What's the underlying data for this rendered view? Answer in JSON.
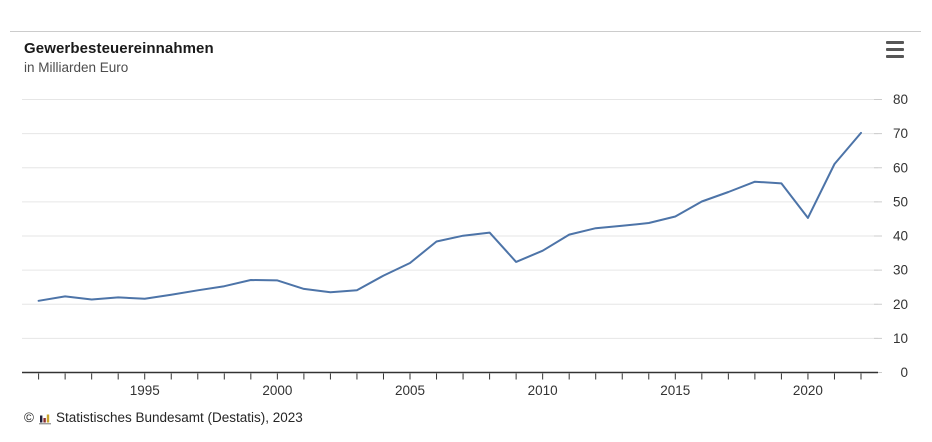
{
  "header": {
    "title": "Gewerbesteuereinnahmen",
    "subtitle": "in Milliarden Euro"
  },
  "menu": {
    "icon": "hamburger-menu-icon"
  },
  "chart_data": {
    "type": "line",
    "title": "Gewerbesteuereinnahmen",
    "subtitle": "in Milliarden Euro",
    "xlabel": "",
    "ylabel": "in Milliarden Euro",
    "x": [
      1991,
      1992,
      1993,
      1994,
      1995,
      1996,
      1997,
      1998,
      1999,
      2000,
      2001,
      2002,
      2003,
      2004,
      2005,
      2006,
      2007,
      2008,
      2009,
      2010,
      2011,
      2012,
      2013,
      2014,
      2015,
      2016,
      2017,
      2018,
      2019,
      2020,
      2021,
      2022
    ],
    "series": [
      {
        "name": "Gewerbesteuereinnahmen",
        "values": [
          21.0,
          22.3,
          21.4,
          22.0,
          21.6,
          22.8,
          24.1,
          25.3,
          27.1,
          27.0,
          24.5,
          23.5,
          24.1,
          28.4,
          32.1,
          38.4,
          40.1,
          41.0,
          32.4,
          35.7,
          40.4,
          42.3,
          43.0,
          43.8,
          45.7,
          50.1,
          52.9,
          55.9,
          55.4,
          45.3,
          61.1,
          70.2
        ]
      }
    ],
    "ylim": [
      0,
      80
    ],
    "yticks": [
      0,
      10,
      20,
      30,
      40,
      50,
      60,
      70,
      80
    ],
    "xticks_labeled": [
      1995,
      2000,
      2005,
      2010,
      2015,
      2020
    ],
    "grid": true,
    "legend": "none",
    "line_color": "#4d74a8",
    "grid_color": "#e6e6e6",
    "axis_color": "#333333",
    "tick_color": "#cccccc",
    "label_color": "#333333"
  },
  "footer": {
    "copyright": "©",
    "source_icon": "destatis-bar-chart-icon",
    "source": "Statistisches Bundesamt (Destatis), 2023"
  }
}
